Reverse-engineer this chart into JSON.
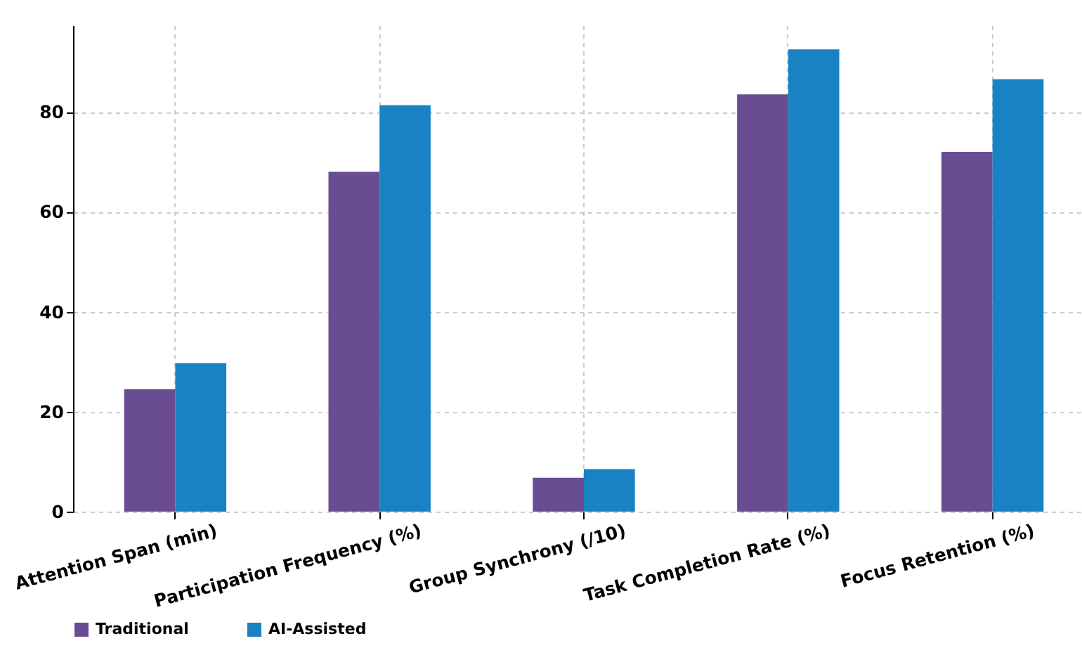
{
  "chart_data": {
    "type": "bar",
    "categories": [
      "Attention Span (min)",
      "Participation Frequency (%)",
      "Group Synchrony (/10)",
      "Task Completion Rate (%)",
      "Focus Retention (%)"
    ],
    "series": [
      {
        "name": "Traditional",
        "color": "#6a4c93",
        "values": [
          24.5,
          68,
          6.8,
          83.5,
          72
        ]
      },
      {
        "name": "AI-Assisted",
        "color": "#1982c4",
        "values": [
          29.7,
          81.3,
          8.5,
          92.5,
          86.5
        ]
      }
    ],
    "ylim": [
      0,
      97.3
    ],
    "yticks": [
      0,
      20,
      40,
      60,
      80
    ],
    "grid": true,
    "legend": "bottom"
  }
}
